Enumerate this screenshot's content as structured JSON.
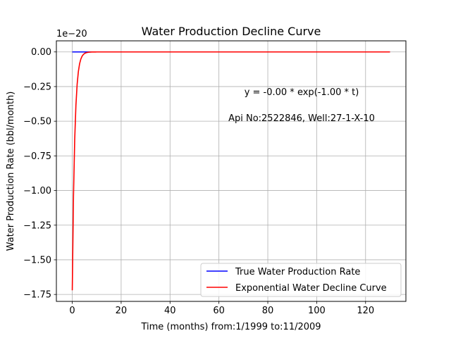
{
  "chart_data": {
    "type": "line",
    "title": "Water Production Decline Curve",
    "xlabel": "Time (months) from:1/1999 to:11/2009",
    "ylabel": "Water Production Rate (bbl/month)",
    "y_offset_label": "1e−20",
    "xlim": [
      -6.5,
      136.5
    ],
    "ylim": [
      -1.8,
      0.08
    ],
    "x_ticks": [
      0,
      20,
      40,
      60,
      80,
      100,
      120
    ],
    "x_tick_labels": [
      "0",
      "20",
      "40",
      "60",
      "80",
      "100",
      "120"
    ],
    "y_ticks": [
      0.0,
      -0.25,
      -0.5,
      -0.75,
      -1.0,
      -1.25,
      -1.5,
      -1.75
    ],
    "y_tick_labels": [
      "0.00",
      "−0.25",
      "−0.50",
      "−0.75",
      "−1.00",
      "−1.25",
      "−1.50",
      "−1.75"
    ],
    "grid": true,
    "legend_position": "bottom-right",
    "annotations": [
      "y = -0.00 * exp(-1.00 * t)",
      "Api No:2522846, Well:27-1-X-10"
    ],
    "series": [
      {
        "name": "True Water Production Rate",
        "color": "#0000ff",
        "x": [
          0,
          130
        ],
        "y": [
          0,
          0
        ]
      },
      {
        "name": "Exponential Water Decline Curve",
        "color": "#ff0000",
        "model": {
          "a": -1.72,
          "b": -1.0
        },
        "x_range": [
          0,
          130
        ]
      }
    ]
  }
}
